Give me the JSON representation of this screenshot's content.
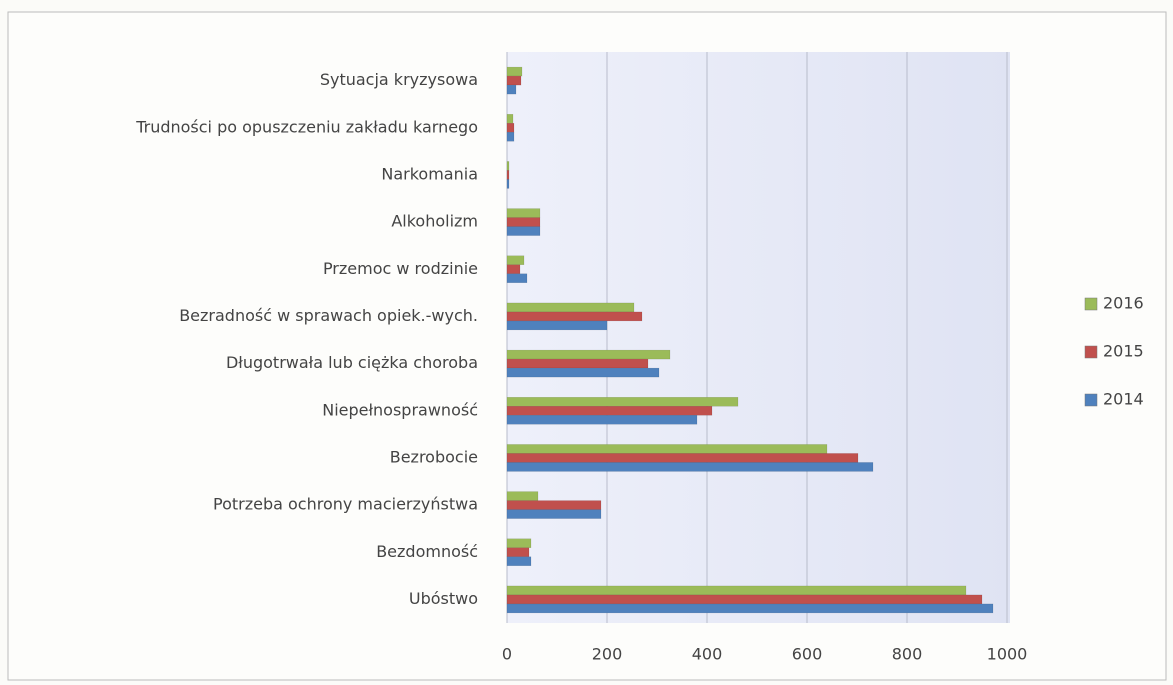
{
  "chart_data": {
    "type": "bar",
    "orientation": "horizontal",
    "categories": [
      "Sytuacja kryzysowa",
      "Trudności po opuszczeniu zakładu karnego",
      "Narkomania",
      "Alkoholizm",
      "Przemoc w rodzinie",
      "Bezradność w sprawach opiek.-wych.",
      "Długotrwała lub ciężka choroba",
      "Niepełnosprawność",
      "Bezrobocie",
      "Potrzeba ochrony macierzyństwa",
      "Bezdomność",
      "Ubóstwo"
    ],
    "series": [
      {
        "name": "2016",
        "color": "#9bbb59",
        "values": [
          30,
          12,
          4,
          66,
          34,
          254,
          326,
          462,
          640,
          62,
          48,
          918
        ]
      },
      {
        "name": "2015",
        "color": "#c0504d",
        "values": [
          28,
          14,
          4,
          66,
          26,
          270,
          282,
          410,
          702,
          188,
          44,
          950
        ]
      },
      {
        "name": "2014",
        "color": "#4f81bd",
        "values": [
          18,
          14,
          4,
          66,
          40,
          200,
          304,
          380,
          732,
          188,
          48,
          972
        ]
      }
    ],
    "xlim": [
      0,
      1000
    ],
    "xticks": [
      0,
      200,
      400,
      600,
      800,
      1000
    ],
    "grid": true,
    "legend": "right"
  }
}
